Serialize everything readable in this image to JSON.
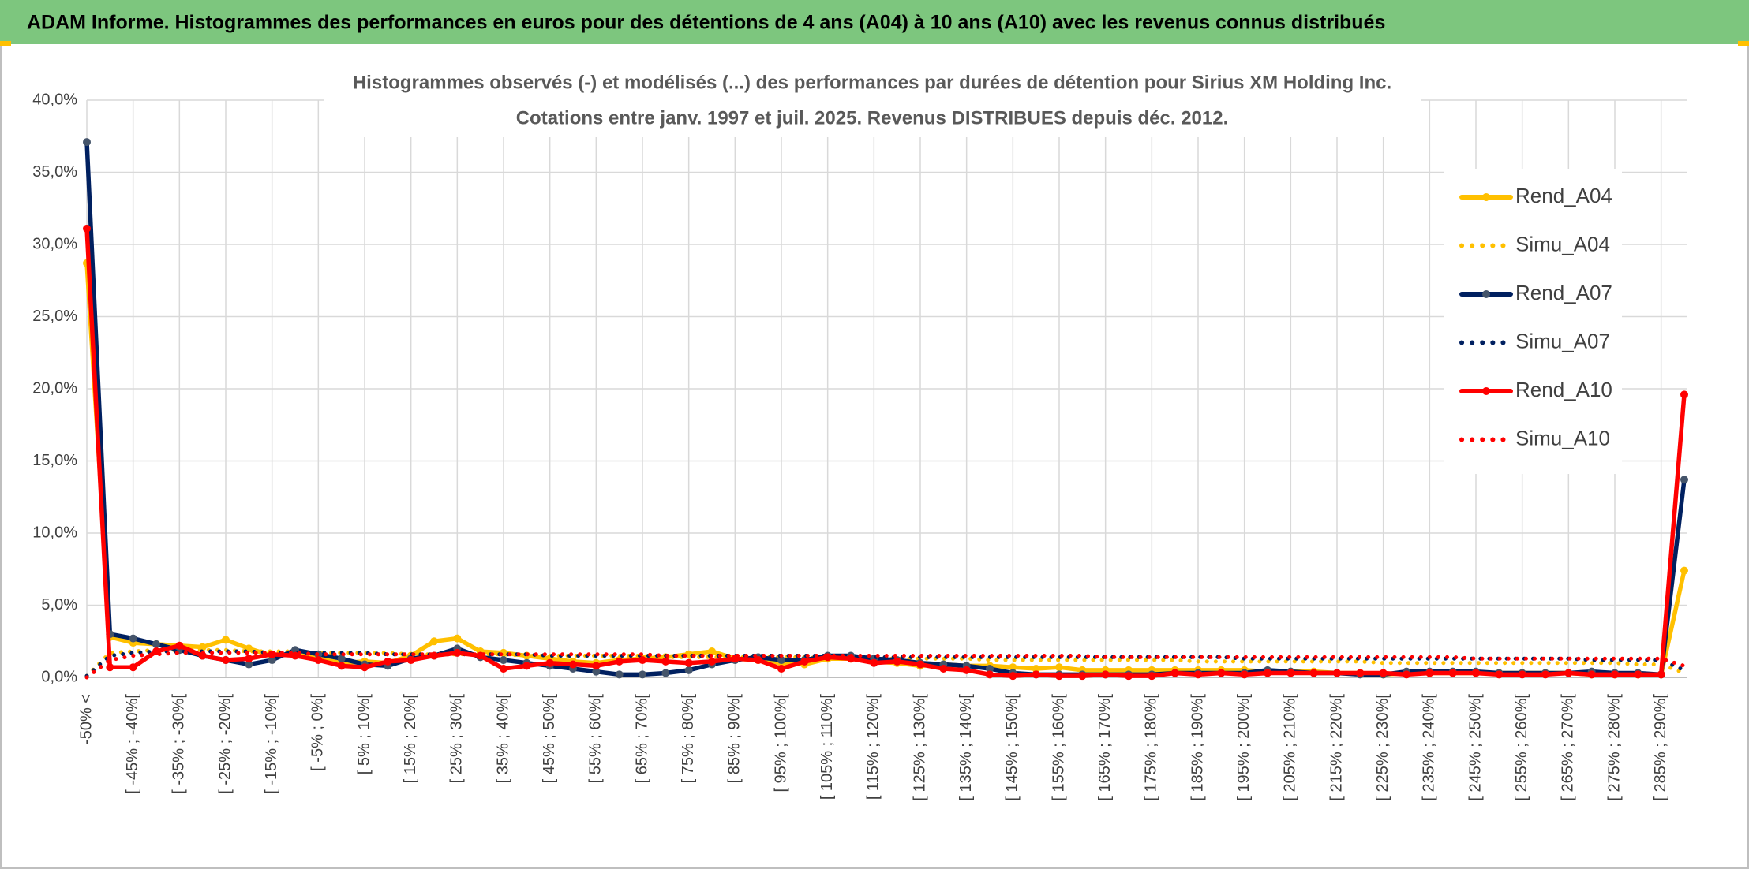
{
  "header": {
    "title": "ADAM Informe. Histogrammes des performances en euros pour des détentions de 4 ans (A04) à 10 ans (A10) avec les revenus connus distribués"
  },
  "chart_data": {
    "type": "line",
    "title": "Histogrammes observés (-) et modélisés (...) des performances par durées de détention pour Sirius XM Holding Inc.",
    "subtitle": "Cotations entre janv. 1997 et juil. 2025. Revenus DISTRIBUES depuis déc. 2012.",
    "categories": [
      "-50% <",
      null,
      "[ -45% ; -40%[",
      null,
      "[ -35% ; -30%[",
      null,
      "[ -25% ; -20%[",
      null,
      "[ -15% ; -10%[",
      null,
      "[ -5% ; 0%[",
      null,
      "[ 5% ; 10%[",
      null,
      "[ 15% ; 20%[",
      null,
      "[ 25% ; 30%[",
      null,
      "[ 35% ; 40%[",
      null,
      "[ 45% ; 50%[",
      null,
      "[ 55% ; 60%[",
      null,
      "[ 65% ; 70%[",
      null,
      "[ 75% ; 80%[",
      null,
      "[ 85% ; 90%[",
      null,
      "[ 95% ; 100%[",
      null,
      "[ 105% ; 110%[",
      null,
      "[ 115% ; 120%[",
      null,
      "[ 125% ; 130%[",
      null,
      "[ 135% ; 140%[",
      null,
      "[ 145% ; 150%[",
      null,
      "[ 155% ; 160%[",
      null,
      "[ 165% ; 170%[",
      null,
      "[ 175% ; 180%[",
      null,
      "[ 185% ; 190%[",
      null,
      "[ 195% ; 200%[",
      null,
      "[ 205% ; 210%[",
      null,
      "[ 215% ; 220%[",
      null,
      "[ 225% ; 230%[",
      null,
      "[ 235% ; 240%[",
      null,
      "[ 245% ; 250%[",
      null,
      "[ 255% ; 260%[",
      null,
      "[ 265% ; 270%[",
      null,
      "[ 275% ; 280%[",
      null,
      "[ 285% ; 290%[",
      null
    ],
    "series": [
      {
        "name": "Rend_A04",
        "color": "#FFC000",
        "style": "solid",
        "values": [
          28.7,
          2.8,
          2.4,
          2.3,
          2.2,
          2.1,
          2.6,
          2.0,
          1.5,
          1.6,
          1.3,
          1.0,
          1.1,
          1.0,
          1.5,
          2.5,
          2.7,
          1.8,
          1.7,
          1.5,
          1.3,
          1.1,
          1.0,
          1.2,
          1.3,
          1.4,
          1.6,
          1.8,
          1.3,
          1.2,
          1.0,
          0.9,
          1.3,
          1.3,
          1.1,
          1.0,
          0.8,
          0.9,
          0.8,
          0.8,
          0.7,
          0.6,
          0.7,
          0.5,
          0.5,
          0.5,
          0.5,
          0.5,
          0.5,
          0.5,
          0.5,
          0.4,
          0.4,
          0.4,
          0.3,
          0.3,
          0.2,
          0.3,
          0.3,
          0.3,
          0.3,
          0.3,
          0.3,
          0.3,
          0.3,
          0.2,
          0.2,
          0.2,
          0.2,
          7.4
        ]
      },
      {
        "name": "Simu_A04",
        "color": "#FFC000",
        "style": "dotted",
        "values": [
          0.1,
          1.7,
          1.8,
          1.9,
          1.9,
          1.9,
          1.9,
          1.8,
          1.8,
          1.8,
          1.7,
          1.7,
          1.7,
          1.7,
          1.6,
          1.6,
          1.6,
          1.6,
          1.6,
          1.5,
          1.5,
          1.5,
          1.5,
          1.5,
          1.5,
          1.4,
          1.4,
          1.4,
          1.4,
          1.4,
          1.4,
          1.4,
          1.3,
          1.3,
          1.3,
          1.3,
          1.3,
          1.3,
          1.3,
          1.2,
          1.2,
          1.2,
          1.2,
          1.2,
          1.2,
          1.2,
          1.2,
          1.2,
          1.1,
          1.1,
          1.1,
          1.1,
          1.1,
          1.1,
          1.1,
          1.1,
          1.0,
          1.0,
          1.0,
          1.0,
          1.0,
          1.0,
          1.0,
          1.0,
          1.0,
          1.0,
          1.0,
          0.9,
          0.9,
          0.3
        ]
      },
      {
        "name": "Rend_A07",
        "color": "#002060",
        "style": "solid",
        "values": [
          37.1,
          3.0,
          2.7,
          2.3,
          1.9,
          1.5,
          1.2,
          0.9,
          1.2,
          1.9,
          1.6,
          1.3,
          0.9,
          0.8,
          1.3,
          1.5,
          2.0,
          1.4,
          1.2,
          1.0,
          0.8,
          0.6,
          0.4,
          0.2,
          0.2,
          0.3,
          0.5,
          0.9,
          1.2,
          1.4,
          1.2,
          1.2,
          1.5,
          1.5,
          1.3,
          1.2,
          1.0,
          0.9,
          0.8,
          0.6,
          0.3,
          0.2,
          0.2,
          0.2,
          0.2,
          0.2,
          0.2,
          0.3,
          0.3,
          0.3,
          0.3,
          0.5,
          0.4,
          0.3,
          0.3,
          0.2,
          0.2,
          0.4,
          0.4,
          0.4,
          0.4,
          0.3,
          0.3,
          0.3,
          0.3,
          0.4,
          0.3,
          0.3,
          0.2,
          13.7
        ]
      },
      {
        "name": "Simu_A07",
        "color": "#002060",
        "style": "dotted",
        "values": [
          0.1,
          1.5,
          1.7,
          1.8,
          1.8,
          1.8,
          1.8,
          1.8,
          1.7,
          1.7,
          1.7,
          1.7,
          1.7,
          1.6,
          1.6,
          1.6,
          1.6,
          1.6,
          1.6,
          1.6,
          1.5,
          1.5,
          1.5,
          1.5,
          1.5,
          1.5,
          1.5,
          1.5,
          1.5,
          1.5,
          1.5,
          1.5,
          1.5,
          1.4,
          1.4,
          1.4,
          1.4,
          1.4,
          1.4,
          1.4,
          1.4,
          1.4,
          1.4,
          1.4,
          1.4,
          1.4,
          1.4,
          1.4,
          1.4,
          1.4,
          1.3,
          1.3,
          1.3,
          1.3,
          1.3,
          1.3,
          1.3,
          1.3,
          1.3,
          1.3,
          1.3,
          1.3,
          1.3,
          1.3,
          1.3,
          1.2,
          1.2,
          1.2,
          1.2,
          0.5
        ]
      },
      {
        "name": "Rend_A10",
        "color": "#FF0000",
        "style": "solid",
        "values": [
          31.1,
          0.7,
          0.7,
          1.8,
          2.2,
          1.5,
          1.2,
          1.3,
          1.6,
          1.5,
          1.2,
          0.8,
          0.7,
          1.1,
          1.2,
          1.5,
          1.7,
          1.5,
          0.6,
          0.8,
          1.0,
          0.9,
          0.8,
          1.1,
          1.2,
          1.1,
          1.0,
          1.1,
          1.3,
          1.2,
          0.6,
          1.1,
          1.4,
          1.3,
          1.0,
          1.1,
          0.9,
          0.6,
          0.5,
          0.2,
          0.1,
          0.2,
          0.1,
          0.1,
          0.2,
          0.1,
          0.1,
          0.3,
          0.2,
          0.3,
          0.2,
          0.3,
          0.3,
          0.3,
          0.3,
          0.3,
          0.3,
          0.2,
          0.3,
          0.3,
          0.3,
          0.2,
          0.2,
          0.2,
          0.3,
          0.2,
          0.2,
          0.2,
          0.2,
          19.6
        ]
      },
      {
        "name": "Simu_A10",
        "color": "#FF0000",
        "style": "dotted",
        "values": [
          0.0,
          1.2,
          1.5,
          1.6,
          1.7,
          1.7,
          1.7,
          1.7,
          1.7,
          1.7,
          1.6,
          1.6,
          1.6,
          1.6,
          1.6,
          1.6,
          1.6,
          1.6,
          1.6,
          1.6,
          1.6,
          1.6,
          1.6,
          1.6,
          1.6,
          1.5,
          1.5,
          1.5,
          1.5,
          1.5,
          1.5,
          1.5,
          1.5,
          1.5,
          1.5,
          1.5,
          1.5,
          1.5,
          1.5,
          1.5,
          1.5,
          1.5,
          1.5,
          1.5,
          1.4,
          1.4,
          1.4,
          1.4,
          1.4,
          1.4,
          1.4,
          1.4,
          1.4,
          1.4,
          1.4,
          1.4,
          1.4,
          1.4,
          1.4,
          1.4,
          1.3,
          1.3,
          1.3,
          1.3,
          1.3,
          1.3,
          1.3,
          1.3,
          1.3,
          0.8
        ]
      }
    ],
    "ylim": [
      0,
      40
    ],
    "yticks": [
      {
        "value": 0,
        "label": "0,0%"
      },
      {
        "value": 5,
        "label": "5,0%"
      },
      {
        "value": 10,
        "label": "10,0%"
      },
      {
        "value": 15,
        "label": "15,0%"
      },
      {
        "value": 20,
        "label": "20,0%"
      },
      {
        "value": 25,
        "label": "25,0%"
      },
      {
        "value": 30,
        "label": "30,0%"
      },
      {
        "value": 35,
        "label": "35,0%"
      },
      {
        "value": 40,
        "label": "40,0%"
      }
    ],
    "grid": true,
    "legend": "right"
  }
}
